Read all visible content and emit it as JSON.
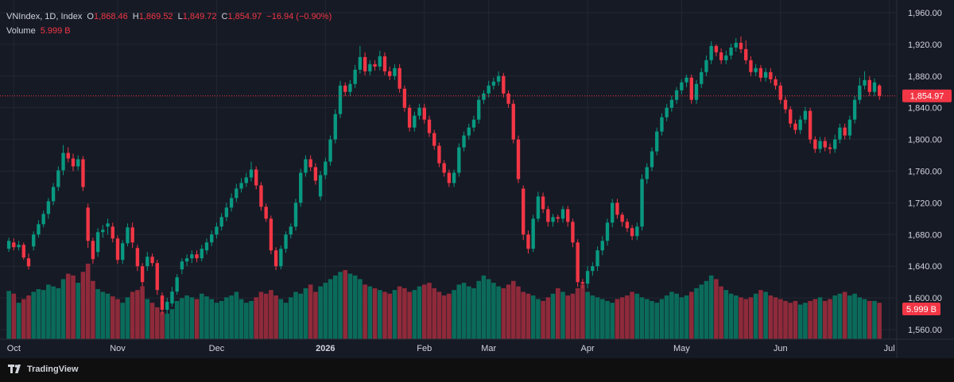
{
  "legend": {
    "symbol": "VNIndex, 1D, Index",
    "o_label": "O",
    "open": "1,868.46",
    "h_label": "H",
    "high": "1,869.52",
    "l_label": "L",
    "low": "1,849.72",
    "c_label": "C",
    "close": "1,854.97",
    "change": "−16.94 (−0.90%)",
    "volume_label": "Volume",
    "volume_value": "5.999 B"
  },
  "price_tag": "1,854.97",
  "volume_tag": "5.999 B",
  "branding": "TradingView",
  "colors": {
    "up": "#089981",
    "down": "#f23645",
    "up_volume": "#0b6b5b",
    "down_volume": "#8e2a3a",
    "background": "#161a25",
    "grid": "#232733",
    "axis_text": "#d1d4dc"
  },
  "chart_data": {
    "type": "candlestick",
    "y_ticks": [
      "1,960.00",
      "1,920.00",
      "1,880.00",
      "1,840.00",
      "1,800.00",
      "1,760.00",
      "1,720.00",
      "1,680.00",
      "1,640.00",
      "1,600.00",
      "1,560.00"
    ],
    "ylim": [
      1548,
      1976
    ],
    "x_ticks": [
      {
        "label": "Oct",
        "index": 1,
        "bold": false
      },
      {
        "label": "Nov",
        "index": 22,
        "bold": false
      },
      {
        "label": "Dec",
        "index": 42,
        "bold": false
      },
      {
        "label": "2026",
        "index": 64,
        "bold": true
      },
      {
        "label": "Feb",
        "index": 84,
        "bold": false
      },
      {
        "label": "Mar",
        "index": 97,
        "bold": false
      },
      {
        "label": "Apr",
        "index": 117,
        "bold": false
      },
      {
        "label": "May",
        "index": 136,
        "bold": false
      },
      {
        "label": "Jun",
        "index": 156,
        "bold": false
      },
      {
        "label": "Jul",
        "index": 178,
        "bold": false
      }
    ],
    "total_slots": 180,
    "last_close": 1854.97,
    "candles": [
      [
        1662,
        1672,
        1658,
        1676
      ],
      [
        1670,
        1664,
        1660,
        1675
      ],
      [
        1664,
        1667,
        1660,
        1672
      ],
      [
        1667,
        1651,
        1648,
        1670
      ],
      [
        1650,
        1640,
        1636,
        1656
      ],
      [
        1665,
        1680,
        1660,
        1684
      ],
      [
        1680,
        1693,
        1676,
        1698
      ],
      [
        1693,
        1706,
        1689,
        1710
      ],
      [
        1706,
        1722,
        1700,
        1726
      ],
      [
        1722,
        1740,
        1717,
        1745
      ],
      [
        1740,
        1761,
        1735,
        1766
      ],
      [
        1761,
        1783,
        1755,
        1793
      ],
      [
        1783,
        1776,
        1771,
        1790
      ],
      [
        1776,
        1766,
        1760,
        1782
      ],
      [
        1766,
        1775,
        1761,
        1780
      ],
      [
        1775,
        1740,
        1735,
        1779
      ],
      [
        1714,
        1672,
        1663,
        1719
      ],
      [
        1672,
        1649,
        1643,
        1676
      ],
      [
        1658,
        1683,
        1652,
        1688
      ],
      [
        1683,
        1686,
        1676,
        1692
      ],
      [
        1690,
        1694,
        1680,
        1700
      ],
      [
        1690,
        1675,
        1670,
        1695
      ],
      [
        1675,
        1648,
        1643,
        1679
      ],
      [
        1648,
        1669,
        1643,
        1673
      ],
      [
        1669,
        1689,
        1665,
        1694
      ],
      [
        1689,
        1670,
        1663,
        1695
      ],
      [
        1663,
        1640,
        1634,
        1667
      ],
      [
        1640,
        1620,
        1614,
        1644
      ],
      [
        1640,
        1652,
        1634,
        1658
      ],
      [
        1652,
        1644,
        1640,
        1656
      ],
      [
        1644,
        1610,
        1604,
        1648
      ],
      [
        1603,
        1585,
        1579,
        1607
      ],
      [
        1585,
        1595,
        1580,
        1600
      ],
      [
        1593,
        1608,
        1589,
        1614
      ],
      [
        1608,
        1626,
        1604,
        1630
      ],
      [
        1636,
        1646,
        1630,
        1650
      ],
      [
        1646,
        1650,
        1640,
        1655
      ],
      [
        1650,
        1655,
        1644,
        1660
      ],
      [
        1655,
        1650,
        1645,
        1660
      ],
      [
        1650,
        1662,
        1646,
        1667
      ],
      [
        1660,
        1670,
        1655,
        1675
      ],
      [
        1670,
        1680,
        1665,
        1685
      ],
      [
        1680,
        1690,
        1675,
        1695
      ],
      [
        1690,
        1702,
        1685,
        1707
      ],
      [
        1702,
        1714,
        1697,
        1720
      ],
      [
        1714,
        1726,
        1709,
        1732
      ],
      [
        1726,
        1738,
        1721,
        1744
      ],
      [
        1738,
        1745,
        1733,
        1751
      ],
      [
        1745,
        1752,
        1740,
        1758
      ],
      [
        1752,
        1762,
        1747,
        1772
      ],
      [
        1762,
        1742,
        1737,
        1766
      ],
      [
        1742,
        1715,
        1710,
        1746
      ],
      [
        1715,
        1700,
        1696,
        1719
      ],
      [
        1700,
        1660,
        1655,
        1704
      ],
      [
        1660,
        1640,
        1635,
        1664
      ],
      [
        1640,
        1662,
        1636,
        1666
      ],
      [
        1662,
        1680,
        1657,
        1684
      ],
      [
        1680,
        1690,
        1675,
        1694
      ],
      [
        1690,
        1720,
        1685,
        1725
      ],
      [
        1720,
        1758,
        1715,
        1763
      ],
      [
        1758,
        1775,
        1753,
        1780
      ],
      [
        1775,
        1765,
        1760,
        1780
      ],
      [
        1765,
        1748,
        1743,
        1770
      ],
      [
        1728,
        1755,
        1723,
        1760
      ],
      [
        1755,
        1772,
        1750,
        1777
      ],
      [
        1772,
        1800,
        1767,
        1805
      ],
      [
        1800,
        1832,
        1795,
        1838
      ],
      [
        1832,
        1868,
        1827,
        1874
      ],
      [
        1868,
        1860,
        1855,
        1872
      ],
      [
        1860,
        1870,
        1855,
        1875
      ],
      [
        1870,
        1888,
        1865,
        1894
      ],
      [
        1888,
        1904,
        1883,
        1918
      ],
      [
        1904,
        1886,
        1881,
        1910
      ],
      [
        1886,
        1895,
        1881,
        1900
      ],
      [
        1895,
        1892,
        1887,
        1900
      ],
      [
        1892,
        1905,
        1887,
        1912
      ],
      [
        1905,
        1886,
        1881,
        1910
      ],
      [
        1886,
        1880,
        1875,
        1892
      ],
      [
        1880,
        1890,
        1875,
        1895
      ],
      [
        1890,
        1864,
        1859,
        1895
      ],
      [
        1864,
        1840,
        1835,
        1868
      ],
      [
        1840,
        1815,
        1810,
        1844
      ],
      [
        1815,
        1830,
        1810,
        1835
      ],
      [
        1830,
        1840,
        1825,
        1845
      ],
      [
        1840,
        1825,
        1820,
        1845
      ],
      [
        1825,
        1808,
        1803,
        1830
      ],
      [
        1808,
        1792,
        1787,
        1812
      ],
      [
        1792,
        1770,
        1765,
        1796
      ],
      [
        1770,
        1758,
        1753,
        1774
      ],
      [
        1758,
        1745,
        1740,
        1762
      ],
      [
        1745,
        1758,
        1740,
        1762
      ],
      [
        1758,
        1790,
        1753,
        1795
      ],
      [
        1790,
        1805,
        1785,
        1810
      ],
      [
        1805,
        1815,
        1800,
        1820
      ],
      [
        1815,
        1825,
        1810,
        1830
      ],
      [
        1825,
        1850,
        1820,
        1855
      ],
      [
        1850,
        1858,
        1845,
        1862
      ],
      [
        1858,
        1868,
        1853,
        1874
      ],
      [
        1868,
        1873,
        1863,
        1878
      ],
      [
        1873,
        1880,
        1868,
        1886
      ],
      [
        1880,
        1858,
        1853,
        1884
      ],
      [
        1858,
        1845,
        1840,
        1862
      ],
      [
        1845,
        1800,
        1795,
        1850
      ],
      [
        1800,
        1750,
        1745,
        1805
      ],
      [
        1738,
        1680,
        1673,
        1742
      ],
      [
        1680,
        1662,
        1656,
        1685
      ],
      [
        1662,
        1700,
        1658,
        1705
      ],
      [
        1700,
        1728,
        1696,
        1734
      ],
      [
        1728,
        1712,
        1707,
        1733
      ],
      [
        1712,
        1696,
        1690,
        1716
      ],
      [
        1696,
        1702,
        1690,
        1706
      ],
      [
        1702,
        1700,
        1695,
        1705
      ],
      [
        1700,
        1712,
        1695,
        1716
      ],
      [
        1712,
        1696,
        1690,
        1716
      ],
      [
        1696,
        1670,
        1664,
        1700
      ],
      [
        1670,
        1620,
        1614,
        1674
      ],
      [
        1620,
        1618,
        1612,
        1624
      ],
      [
        1618,
        1634,
        1612,
        1640
      ],
      [
        1634,
        1640,
        1628,
        1645
      ],
      [
        1640,
        1660,
        1634,
        1665
      ],
      [
        1660,
        1672,
        1654,
        1678
      ],
      [
        1672,
        1695,
        1666,
        1700
      ],
      [
        1695,
        1720,
        1689,
        1725
      ],
      [
        1720,
        1705,
        1700,
        1725
      ],
      [
        1705,
        1696,
        1690,
        1708
      ],
      [
        1696,
        1688,
        1683,
        1700
      ],
      [
        1688,
        1678,
        1673,
        1692
      ],
      [
        1678,
        1690,
        1673,
        1695
      ],
      [
        1690,
        1750,
        1685,
        1756
      ],
      [
        1750,
        1765,
        1744,
        1770
      ],
      [
        1765,
        1785,
        1760,
        1790
      ],
      [
        1785,
        1810,
        1780,
        1815
      ],
      [
        1810,
        1828,
        1805,
        1833
      ],
      [
        1828,
        1840,
        1823,
        1845
      ],
      [
        1840,
        1850,
        1835,
        1855
      ],
      [
        1850,
        1862,
        1845,
        1866
      ],
      [
        1862,
        1872,
        1857,
        1876
      ],
      [
        1872,
        1878,
        1866,
        1882
      ],
      [
        1878,
        1850,
        1845,
        1882
      ],
      [
        1850,
        1870,
        1845,
        1875
      ],
      [
        1870,
        1885,
        1865,
        1890
      ],
      [
        1885,
        1900,
        1880,
        1906
      ],
      [
        1900,
        1918,
        1895,
        1924
      ],
      [
        1918,
        1910,
        1905,
        1920
      ],
      [
        1910,
        1900,
        1895,
        1915
      ],
      [
        1900,
        1906,
        1895,
        1912
      ],
      [
        1906,
        1916,
        1901,
        1921
      ],
      [
        1916,
        1922,
        1911,
        1928
      ],
      [
        1922,
        1914,
        1909,
        1930
      ],
      [
        1914,
        1900,
        1895,
        1925
      ],
      [
        1900,
        1885,
        1880,
        1905
      ],
      [
        1885,
        1890,
        1880,
        1895
      ],
      [
        1890,
        1878,
        1873,
        1894
      ],
      [
        1878,
        1885,
        1873,
        1890
      ],
      [
        1885,
        1876,
        1871,
        1890
      ],
      [
        1876,
        1868,
        1863,
        1880
      ],
      [
        1868,
        1850,
        1845,
        1872
      ],
      [
        1850,
        1838,
        1833,
        1854
      ],
      [
        1838,
        1820,
        1815,
        1842
      ],
      [
        1820,
        1812,
        1807,
        1825
      ],
      [
        1812,
        1825,
        1807,
        1830
      ],
      [
        1825,
        1836,
        1820,
        1841
      ],
      [
        1836,
        1800,
        1795,
        1840
      ],
      [
        1800,
        1788,
        1783,
        1804
      ],
      [
        1788,
        1798,
        1783,
        1803
      ],
      [
        1798,
        1790,
        1785,
        1803
      ],
      [
        1790,
        1788,
        1782,
        1795
      ],
      [
        1788,
        1800,
        1783,
        1806
      ],
      [
        1800,
        1815,
        1795,
        1820
      ],
      [
        1815,
        1805,
        1800,
        1820
      ],
      [
        1805,
        1825,
        1800,
        1830
      ],
      [
        1825,
        1850,
        1820,
        1855
      ],
      [
        1850,
        1868,
        1845,
        1878
      ],
      [
        1868,
        1875,
        1863,
        1886
      ],
      [
        1875,
        1860,
        1855,
        1880
      ],
      [
        1860,
        1872,
        1855,
        1877
      ],
      [
        1868,
        1855,
        1850,
        1870
      ]
    ],
    "volumes": [
      53,
      50,
      40,
      44,
      48,
      52,
      55,
      54,
      60,
      58,
      56,
      66,
      72,
      70,
      62,
      74,
      83,
      64,
      55,
      52,
      50,
      47,
      44,
      40,
      46,
      52,
      54,
      58,
      44,
      40,
      35,
      30,
      28,
      33,
      42,
      45,
      48,
      46,
      44,
      50,
      47,
      44,
      40,
      42,
      46,
      48,
      52,
      44,
      40,
      42,
      46,
      52,
      50,
      54,
      48,
      44,
      40,
      46,
      52,
      50,
      56,
      60,
      52,
      58,
      62,
      66,
      70,
      74,
      76,
      72,
      70,
      66,
      60,
      58,
      56,
      54,
      52,
      50,
      54,
      58,
      56,
      52,
      54,
      58,
      60,
      62,
      56,
      52,
      48,
      50,
      54,
      60,
      62,
      58,
      56,
      64,
      70,
      66,
      62,
      58,
      56,
      60,
      64,
      58,
      52,
      50,
      48,
      44,
      42,
      46,
      50,
      56,
      52,
      48,
      50,
      56,
      60,
      52,
      48,
      46,
      44,
      42,
      40,
      44,
      46,
      48,
      52,
      50,
      46,
      44,
      42,
      40,
      44,
      48,
      52,
      50,
      46,
      48,
      52,
      56,
      60,
      64,
      70,
      66,
      58,
      54,
      50,
      48,
      46,
      44,
      46,
      50,
      54,
      52,
      48,
      46,
      44,
      42,
      40,
      42,
      38,
      40,
      42,
      44,
      46,
      42,
      44,
      48,
      50,
      52,
      48,
      50,
      46,
      44,
      42,
      42,
      40
    ]
  }
}
